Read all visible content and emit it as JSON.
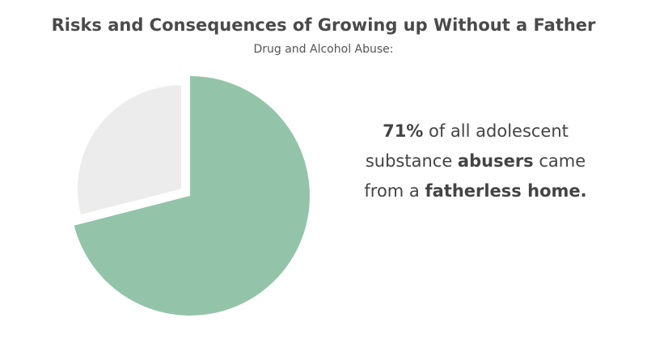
{
  "chart_data": {
    "type": "pie",
    "title": "Risks and Consequences of Growing up Without a Father",
    "subtitle": "Drug and Alcohol Abuse:",
    "categories": [
      null,
      null
    ],
    "values": [
      71,
      29
    ],
    "colors": [
      "#93c4a9",
      "#ececec"
    ],
    "exploded": [
      false,
      true
    ],
    "annotation": [
      [
        {
          "text": "71%",
          "bold": true
        },
        {
          "text": " of all adolescent"
        }
      ],
      [
        {
          "text": "substance "
        },
        {
          "text": "abusers",
          "bold": true
        },
        {
          "text": " came"
        }
      ],
      [
        {
          "text": "from a "
        },
        {
          "text": "fatherless home.",
          "bold": true
        }
      ]
    ]
  }
}
